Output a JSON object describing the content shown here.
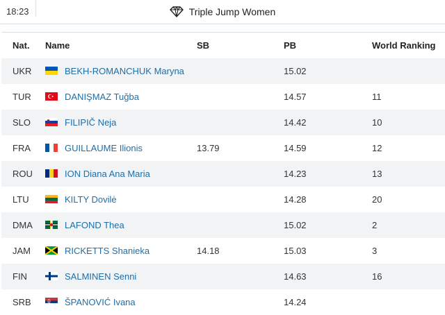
{
  "header": {
    "time": "18:23",
    "title": "Triple Jump Women"
  },
  "table": {
    "columns": {
      "nat": "Nat.",
      "name": "Name",
      "sb": "SB",
      "pb": "PB",
      "rank": "World Ranking"
    },
    "rows": [
      {
        "nat": "UKR",
        "flag": "ukraine-flag",
        "name": "BEKH-ROMANCHUK Maryna",
        "sb": "",
        "pb": "15.02",
        "rank": ""
      },
      {
        "nat": "TUR",
        "flag": "turkey-flag",
        "name": "DANIŞMAZ Tuğba",
        "sb": "",
        "pb": "14.57",
        "rank": "11"
      },
      {
        "nat": "SLO",
        "flag": "slovenia-flag",
        "name": "FILIPIČ Neja",
        "sb": "",
        "pb": "14.42",
        "rank": "10"
      },
      {
        "nat": "FRA",
        "flag": "france-flag",
        "name": "GUILLAUME Ilionis",
        "sb": "13.79",
        "pb": "14.59",
        "rank": "12"
      },
      {
        "nat": "ROU",
        "flag": "romania-flag",
        "name": "ION Diana Ana Maria",
        "sb": "",
        "pb": "14.23",
        "rank": "13"
      },
      {
        "nat": "LTU",
        "flag": "lithuania-flag",
        "name": "KILTY Dovilė",
        "sb": "",
        "pb": "14.28",
        "rank": "20"
      },
      {
        "nat": "DMA",
        "flag": "dominica-flag",
        "name": "LAFOND Thea",
        "sb": "",
        "pb": "15.02",
        "rank": "2"
      },
      {
        "nat": "JAM",
        "flag": "jamaica-flag",
        "name": "RICKETTS Shanieka",
        "sb": "14.18",
        "pb": "15.03",
        "rank": "3"
      },
      {
        "nat": "FIN",
        "flag": "finland-flag",
        "name": "SALMINEN Senni",
        "sb": "",
        "pb": "14.63",
        "rank": "16"
      },
      {
        "nat": "SRB",
        "flag": "serbia-flag",
        "name": "ŠPANOVIĆ Ivana",
        "sb": "",
        "pb": "14.24",
        "rank": ""
      }
    ]
  },
  "colors": {
    "link": "#1e6ea8",
    "row_alt": "#f1f3f5",
    "border": "#d9dee3"
  }
}
